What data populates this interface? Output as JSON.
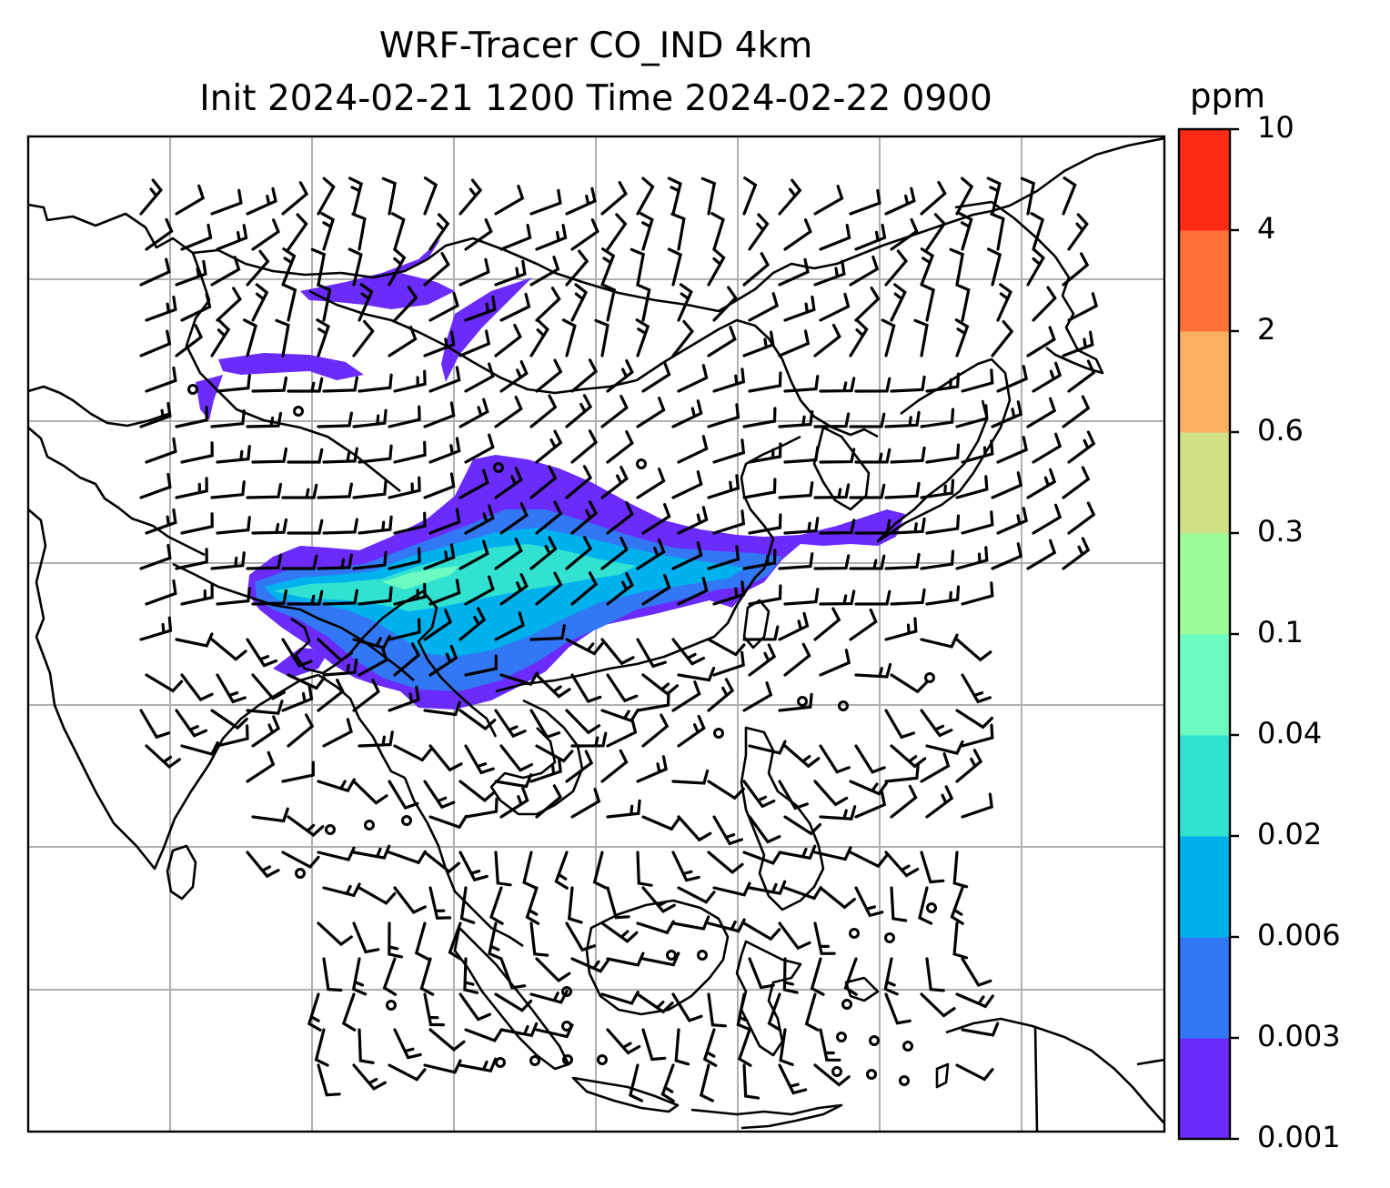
{
  "title": {
    "line1": "WRF-Tracer CO_IND 4km",
    "line2": "Init 2024-02-21 1200 Time 2024-02-22 0900"
  },
  "colorbar": {
    "unit": "ppm",
    "levels": [
      "0.001",
      "0.003",
      "0.006",
      "0.02",
      "0.04",
      "0.1",
      "0.3",
      "0.6",
      "2",
      "4",
      "10"
    ],
    "colors": [
      "#6a2bfb",
      "#3277f4",
      "#00b1ee",
      "#31e1d2",
      "#6cfbc0",
      "#9afd98",
      "#cfe086",
      "#fcb064",
      "#fd7038",
      "#fe2b14"
    ]
  },
  "map": {
    "colors": {
      "coast": "#000000",
      "grid": "#b0b0b0",
      "barb": "#000000"
    },
    "plume_levels": [
      "0.001",
      "0.003",
      "0.006",
      "0.02",
      "0.04",
      "0.1"
    ]
  }
}
